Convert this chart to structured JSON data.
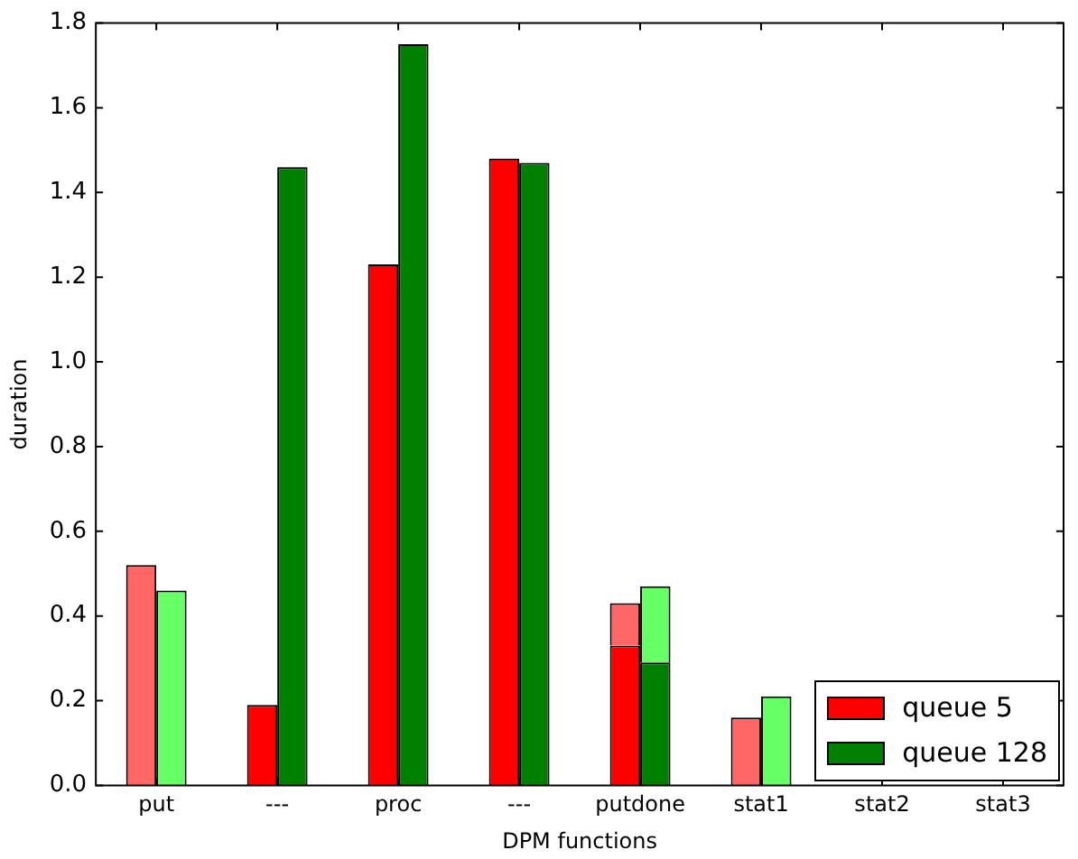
{
  "chart_data": {
    "type": "bar",
    "xlabel": "DPM functions",
    "ylabel": "duration",
    "categories": [
      "put",
      "---",
      "proc",
      "---",
      "putdone",
      "stat1",
      "stat2",
      "stat3"
    ],
    "series": [
      {
        "name": "queue 5",
        "color": "#ff0000",
        "colors": [
          "#ff6666",
          "#ff0000",
          "#ff0000",
          "#ff0000",
          "#ff0000",
          "#ff6666",
          "#ff6666",
          "#ff6666"
        ],
        "values": [
          0.52,
          0.19,
          1.23,
          1.48,
          0.33,
          0.16,
          null,
          0
        ]
      },
      {
        "color": "#ff6666",
        "base": [
          null,
          null,
          null,
          null,
          0.33,
          null,
          null,
          null
        ],
        "values": [
          null,
          null,
          null,
          null,
          0.1,
          null,
          null,
          null
        ]
      },
      {
        "name": "queue 128",
        "color": "#008000",
        "colors": [
          "#66ff66",
          "#008000",
          "#008000",
          "#008000",
          "#008000",
          "#66ff66",
          "#66ff66",
          "#66ff66"
        ],
        "values": [
          0.46,
          1.46,
          1.75,
          1.47,
          0.29,
          0.21,
          null,
          null
        ]
      },
      {
        "color": "#66ff66",
        "base": [
          null,
          null,
          null,
          null,
          0.29,
          null,
          null,
          null
        ],
        "values": [
          null,
          null,
          null,
          null,
          0.18,
          null,
          null,
          null
        ]
      }
    ],
    "ylim": [
      0,
      1.8
    ],
    "yticks": [
      {
        "value": 0,
        "label": "0.0"
      },
      {
        "value": 0.2,
        "label": "0.2"
      },
      {
        "value": 0.4,
        "label": "0.4"
      },
      {
        "value": 0.6,
        "label": "0.6"
      },
      {
        "value": 0.8,
        "label": "0.8"
      },
      {
        "value": 1,
        "label": "1.0"
      },
      {
        "value": 1.2,
        "label": "1.2"
      },
      {
        "value": 1.4,
        "label": "1.4"
      },
      {
        "value": 1.6,
        "label": "1.6"
      },
      {
        "value": 1.8,
        "label": "1.8"
      }
    ],
    "grid": false,
    "legend": "bottom right"
  }
}
